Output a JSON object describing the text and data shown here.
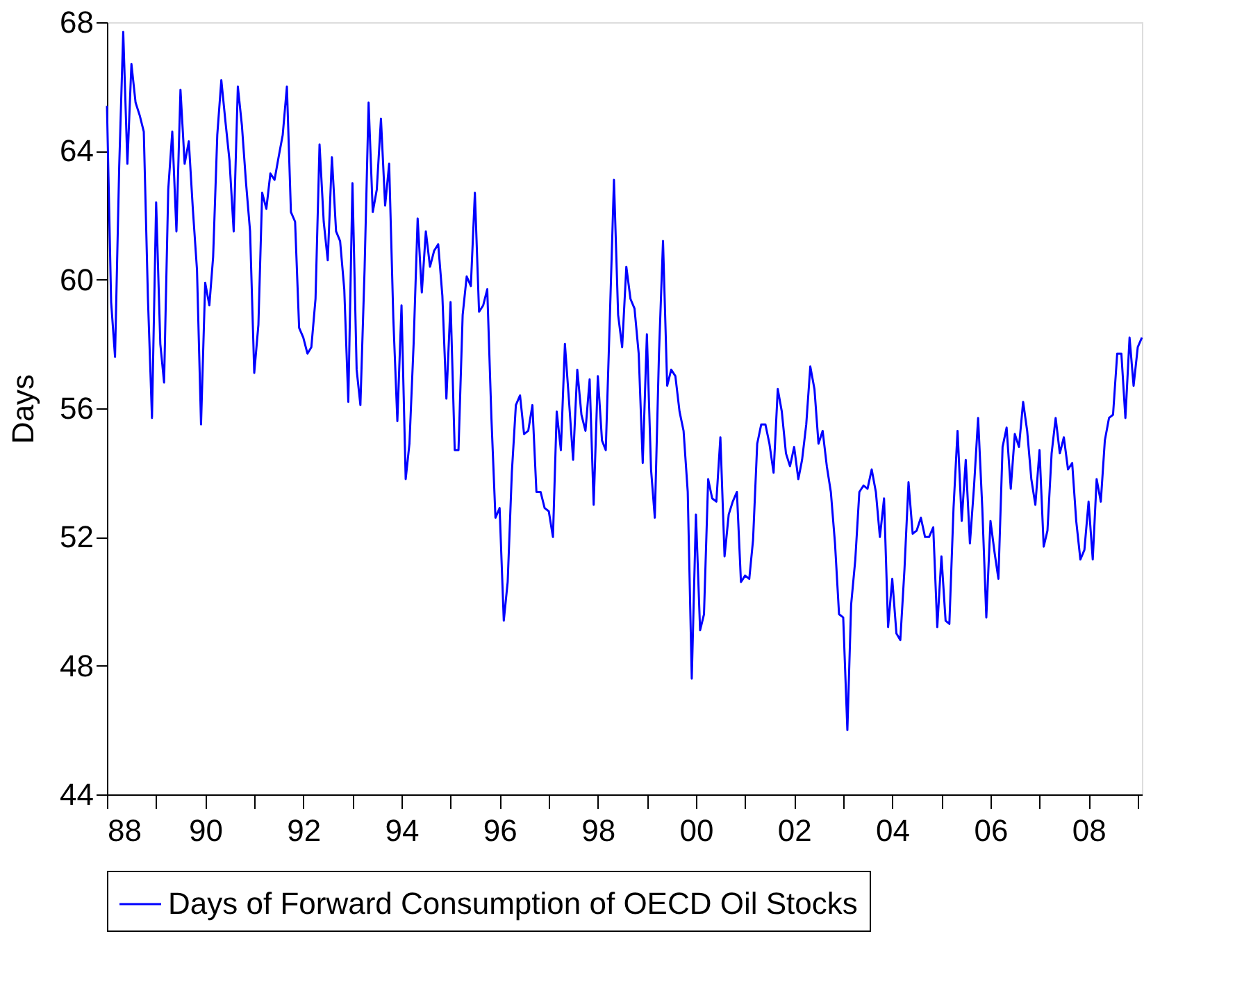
{
  "chart_data": {
    "type": "line",
    "ylabel": "Days",
    "x": [
      "1988-01",
      "1988-02",
      "1988-03",
      "1988-04",
      "1988-05",
      "1988-06",
      "1988-07",
      "1988-08",
      "1988-09",
      "1988-10",
      "1988-11",
      "1988-12",
      "1989-01",
      "1989-02",
      "1989-03",
      "1989-04",
      "1989-05",
      "1989-06",
      "1989-07",
      "1989-08",
      "1989-09",
      "1989-10",
      "1989-11",
      "1989-12",
      "1990-01",
      "1990-02",
      "1990-03",
      "1990-04",
      "1990-05",
      "1990-06",
      "1990-07",
      "1990-08",
      "1990-09",
      "1990-10",
      "1990-11",
      "1990-12",
      "1991-01",
      "1991-02",
      "1991-03",
      "1991-04",
      "1991-05",
      "1991-06",
      "1991-07",
      "1991-08",
      "1991-09",
      "1991-10",
      "1991-11",
      "1991-12",
      "1992-01",
      "1992-02",
      "1992-03",
      "1992-04",
      "1992-05",
      "1992-06",
      "1992-07",
      "1992-08",
      "1992-09",
      "1992-10",
      "1992-11",
      "1992-12",
      "1993-01",
      "1993-02",
      "1993-03",
      "1993-04",
      "1993-05",
      "1993-06",
      "1993-07",
      "1993-08",
      "1993-09",
      "1993-10",
      "1993-11",
      "1993-12",
      "1994-01",
      "1994-02",
      "1994-03",
      "1994-04",
      "1994-05",
      "1994-06",
      "1994-07",
      "1994-08",
      "1994-09",
      "1994-10",
      "1994-11",
      "1994-12",
      "1995-01",
      "1995-02",
      "1995-03",
      "1995-04",
      "1995-05",
      "1995-06",
      "1995-07",
      "1995-08",
      "1995-09",
      "1995-10",
      "1995-11",
      "1995-12",
      "1996-01",
      "1996-02",
      "1996-03",
      "1996-04",
      "1996-05",
      "1996-06",
      "1996-07",
      "1996-08",
      "1996-09",
      "1996-10",
      "1996-11",
      "1996-12",
      "1997-01",
      "1997-02",
      "1997-03",
      "1997-04",
      "1997-05",
      "1997-06",
      "1997-07",
      "1997-08",
      "1997-09",
      "1997-10",
      "1997-11",
      "1997-12",
      "1998-01",
      "1998-02",
      "1998-03",
      "1998-04",
      "1998-05",
      "1998-06",
      "1998-07",
      "1998-08",
      "1998-09",
      "1998-10",
      "1998-11",
      "1998-12",
      "1999-01",
      "1999-02",
      "1999-03",
      "1999-04",
      "1999-05",
      "1999-06",
      "1999-07",
      "1999-08",
      "1999-09",
      "1999-10",
      "1999-11",
      "1999-12",
      "2000-01",
      "2000-02",
      "2000-03",
      "2000-04",
      "2000-05",
      "2000-06",
      "2000-07",
      "2000-08",
      "2000-09",
      "2000-10",
      "2000-11",
      "2000-12",
      "2001-01",
      "2001-02",
      "2001-03",
      "2001-04",
      "2001-05",
      "2001-06",
      "2001-07",
      "2001-08",
      "2001-09",
      "2001-10",
      "2001-11",
      "2001-12",
      "2002-01",
      "2002-02",
      "2002-03",
      "2002-04",
      "2002-05",
      "2002-06",
      "2002-07",
      "2002-08",
      "2002-09",
      "2002-10",
      "2002-11",
      "2002-12",
      "2003-01",
      "2003-02",
      "2003-03",
      "2003-04",
      "2003-05",
      "2003-06",
      "2003-07",
      "2003-08",
      "2003-09",
      "2003-10",
      "2003-11",
      "2003-12",
      "2004-01",
      "2004-02",
      "2004-03",
      "2004-04",
      "2004-05",
      "2004-06",
      "2004-07",
      "2004-08",
      "2004-09",
      "2004-10",
      "2004-11",
      "2004-12",
      "2005-01",
      "2005-02",
      "2005-03",
      "2005-04",
      "2005-05",
      "2005-06",
      "2005-07",
      "2005-08",
      "2005-09",
      "2005-10",
      "2005-11",
      "2005-12",
      "2006-01",
      "2006-02",
      "2006-03",
      "2006-04",
      "2006-05",
      "2006-06",
      "2006-07",
      "2006-08",
      "2006-09",
      "2006-10",
      "2006-11",
      "2006-12",
      "2007-01",
      "2007-02",
      "2007-03",
      "2007-04",
      "2007-05",
      "2007-06",
      "2007-07",
      "2007-08",
      "2007-09",
      "2007-10",
      "2007-11",
      "2007-12",
      "2008-01",
      "2008-02",
      "2008-03",
      "2008-04",
      "2008-05",
      "2008-06",
      "2008-07",
      "2008-08",
      "2008-09",
      "2008-10",
      "2008-11",
      "2008-12",
      "2009-01",
      "2009-02"
    ],
    "series": [
      {
        "name": "Days of Forward Consumption of OECD Oil Stocks",
        "color": "#0000ff",
        "values": [
          65.4,
          59.3,
          57.6,
          63.5,
          67.7,
          63.6,
          66.7,
          65.5,
          65.1,
          64.6,
          59.4,
          55.7,
          62.4,
          58.0,
          56.8,
          62.8,
          64.6,
          61.5,
          65.9,
          63.6,
          64.3,
          62.2,
          60.3,
          55.5,
          59.9,
          59.2,
          60.7,
          64.5,
          66.2,
          64.9,
          63.7,
          61.5,
          66.0,
          64.8,
          63.0,
          61.5,
          57.1,
          58.6,
          62.7,
          62.2,
          63.3,
          63.1,
          63.8,
          64.5,
          66.0,
          62.1,
          61.8,
          58.5,
          58.2,
          57.7,
          57.9,
          59.4,
          64.2,
          61.8,
          60.6,
          63.8,
          61.5,
          61.2,
          59.7,
          56.2,
          63.0,
          57.2,
          56.1,
          60.3,
          65.5,
          62.1,
          62.8,
          65.0,
          62.3,
          63.6,
          58.8,
          55.6,
          59.2,
          53.8,
          54.9,
          58.0,
          61.9,
          59.6,
          61.5,
          60.4,
          60.9,
          61.1,
          59.5,
          56.3,
          59.3,
          54.7,
          54.7,
          58.9,
          60.1,
          59.8,
          62.7,
          59.0,
          59.2,
          59.7,
          55.7,
          52.6,
          52.9,
          49.4,
          50.6,
          54.0,
          56.1,
          56.4,
          55.2,
          55.3,
          56.1,
          53.4,
          53.4,
          52.9,
          52.8,
          52.0,
          55.9,
          54.7,
          58.0,
          56.2,
          54.4,
          57.2,
          55.8,
          55.3,
          56.9,
          53.0,
          57.0,
          55.0,
          54.7,
          58.9,
          63.1,
          58.9,
          57.9,
          60.4,
          59.4,
          59.1,
          57.7,
          54.3,
          58.3,
          54.1,
          52.6,
          57.7,
          61.2,
          56.7,
          57.2,
          57.0,
          55.9,
          55.3,
          53.4,
          47.6,
          52.7,
          49.1,
          49.6,
          53.8,
          53.2,
          53.1,
          55.1,
          51.4,
          52.7,
          53.1,
          53.4,
          50.6,
          50.8,
          50.7,
          51.9,
          54.9,
          55.5,
          55.5,
          54.9,
          54.0,
          56.6,
          55.9,
          54.6,
          54.2,
          54.8,
          53.8,
          54.4,
          55.5,
          57.3,
          56.6,
          54.9,
          55.3,
          54.2,
          53.4,
          51.8,
          49.6,
          49.5,
          46.0,
          49.9,
          51.3,
          53.4,
          53.6,
          53.5,
          54.1,
          53.4,
          52.0,
          53.2,
          49.2,
          50.7,
          49.0,
          48.8,
          51.0,
          53.7,
          52.1,
          52.2,
          52.6,
          52.0,
          52.0,
          52.3,
          49.2,
          51.4,
          49.4,
          49.3,
          52.9,
          55.3,
          52.5,
          54.4,
          51.8,
          53.6,
          55.7,
          52.9,
          49.5,
          52.5,
          51.5,
          50.7,
          54.8,
          55.4,
          53.5,
          55.2,
          54.8,
          56.2,
          55.3,
          53.8,
          53.0,
          54.7,
          51.7,
          52.2,
          54.6,
          55.7,
          54.6,
          55.1,
          54.1,
          54.3,
          52.5,
          51.3,
          51.6,
          53.1,
          51.3,
          53.8,
          53.1,
          55.0,
          55.7,
          55.8,
          57.7,
          57.7,
          55.7,
          58.2,
          56.7,
          57.9,
          58.2
        ]
      }
    ],
    "xlim": [
      "1988-01",
      "2009-02"
    ],
    "xticks": [
      {
        "value": "1988-01",
        "label": "88"
      },
      {
        "value": "1989-01",
        "label": null
      },
      {
        "value": "1990-01",
        "label": "90"
      },
      {
        "value": "1991-01",
        "label": null
      },
      {
        "value": "1992-01",
        "label": "92"
      },
      {
        "value": "1993-01",
        "label": null
      },
      {
        "value": "1994-01",
        "label": "94"
      },
      {
        "value": "1995-01",
        "label": null
      },
      {
        "value": "1996-01",
        "label": "96"
      },
      {
        "value": "1997-01",
        "label": null
      },
      {
        "value": "1998-01",
        "label": "98"
      },
      {
        "value": "1999-01",
        "label": null
      },
      {
        "value": "2000-01",
        "label": "00"
      },
      {
        "value": "2001-01",
        "label": null
      },
      {
        "value": "2002-01",
        "label": "02"
      },
      {
        "value": "2003-01",
        "label": null
      },
      {
        "value": "2004-01",
        "label": "04"
      },
      {
        "value": "2005-01",
        "label": null
      },
      {
        "value": "2006-01",
        "label": "06"
      },
      {
        "value": "2007-01",
        "label": null
      },
      {
        "value": "2008-01",
        "label": "08"
      },
      {
        "value": "2009-01",
        "label": null
      }
    ],
    "ylim": [
      44,
      68
    ],
    "yticks": [
      44,
      48,
      52,
      56,
      60,
      64,
      68
    ],
    "grid": false,
    "legend": "bottom"
  }
}
